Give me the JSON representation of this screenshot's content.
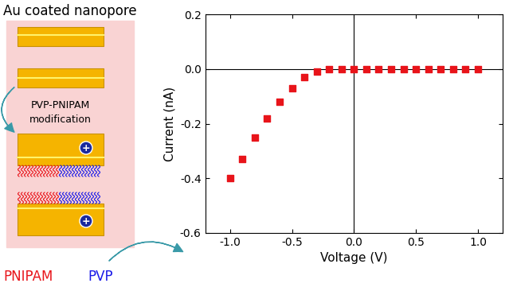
{
  "diagram": {
    "title": "Au coated nanopore",
    "step": [
      "PVP-PNIPAM",
      "modification"
    ],
    "charge": "+",
    "polymers": [
      {
        "name": "PNIPAM",
        "color": "#e8141a"
      },
      {
        "name": "PVP",
        "color": "#1a1ae8"
      }
    ]
  },
  "chart_data": {
    "type": "scatter",
    "x_label": "Voltage (V)",
    "y_label": "Current (nA)",
    "x": [
      -1.0,
      -0.9,
      -0.8,
      -0.7,
      -0.6,
      -0.5,
      -0.4,
      -0.3,
      -0.2,
      -0.1,
      0.0,
      0.1,
      0.2,
      0.3,
      0.4,
      0.5,
      0.6,
      0.7,
      0.8,
      0.9,
      1.0
    ],
    "values": [
      -0.4,
      -0.33,
      -0.25,
      -0.18,
      -0.12,
      -0.07,
      -0.03,
      -0.01,
      0.0,
      0.0,
      0.0,
      0.0,
      0.0,
      0.0,
      0.0,
      0.0,
      0.0,
      0.0,
      0.0,
      0.0,
      0.0
    ],
    "color": "#e8141a",
    "marker": "square",
    "xlim": [
      -1.2,
      1.2
    ],
    "ylim": [
      -0.6,
      0.2
    ],
    "xticks": [
      {
        "value": -1.0,
        "label": "-1.0"
      },
      {
        "value": -0.5,
        "label": "-0.5"
      },
      {
        "value": 0.0,
        "label": "0.0"
      },
      {
        "value": 0.5,
        "label": "0.5"
      },
      {
        "value": 1.0,
        "label": "1.0"
      }
    ],
    "yticks": [
      {
        "value": 0.2,
        "label": "0.2"
      },
      {
        "value": 0.0,
        "label": "0.0"
      },
      {
        "value": -0.2,
        "label": "-0.2"
      },
      {
        "value": -0.4,
        "label": "-0.4"
      },
      {
        "value": -0.6,
        "label": "-0.6"
      }
    ]
  }
}
